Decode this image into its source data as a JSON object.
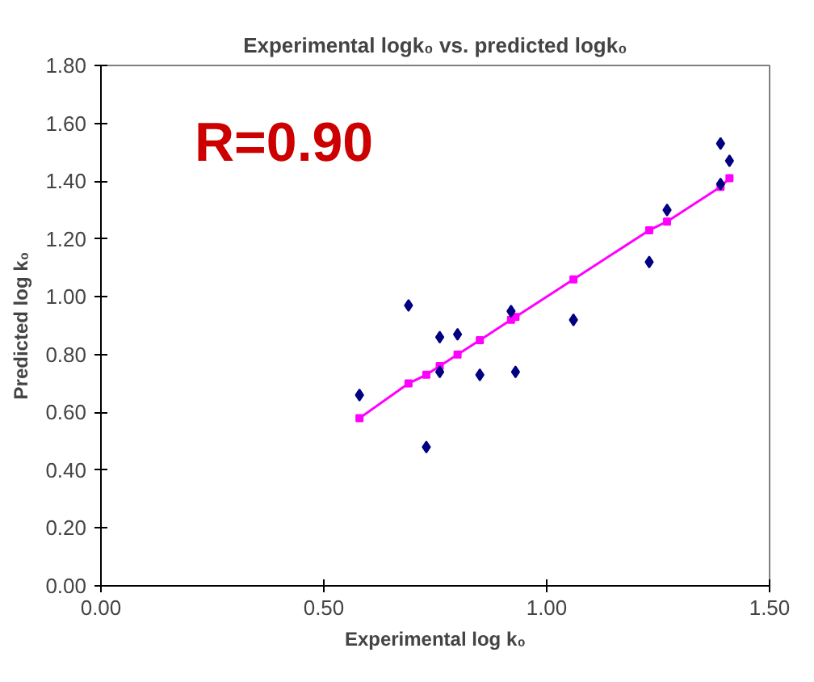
{
  "chart_data": {
    "type": "scatter",
    "title": "Experimental logk₀ vs. predicted logk₀",
    "xlabel": "Experimental log k₀",
    "ylabel": "Predicted log k₀",
    "xlim": [
      0,
      1.5
    ],
    "ylim": [
      0,
      1.8
    ],
    "xticks": [
      {
        "value": 0,
        "label": "0.00"
      },
      {
        "value": 0.5,
        "label": "0.50"
      },
      {
        "value": 1,
        "label": "1.00"
      },
      {
        "value": 1.5,
        "label": "1.50"
      }
    ],
    "yticks": [
      {
        "value": 0,
        "label": "0.00"
      },
      {
        "value": 0.2,
        "label": "0.20"
      },
      {
        "value": 0.4,
        "label": "0.40"
      },
      {
        "value": 0.6,
        "label": "0.60"
      },
      {
        "value": 0.8,
        "label": "0.80"
      },
      {
        "value": 1,
        "label": "1.00"
      },
      {
        "value": 1.2,
        "label": "1.20"
      },
      {
        "value": 1.4,
        "label": "1.40"
      },
      {
        "value": 1.6,
        "label": "1.60"
      },
      {
        "value": 1.8,
        "label": "1.80"
      }
    ],
    "series": [
      {
        "marker": "diamond",
        "color": "#000080",
        "x": [
          0.58,
          0.69,
          0.73,
          0.76,
          0.76,
          0.8,
          0.85,
          0.92,
          0.93,
          1.06,
          1.23,
          1.27,
          1.39,
          1.39,
          1.41
        ],
        "values": [
          0.66,
          0.97,
          0.48,
          0.86,
          0.74,
          0.87,
          0.73,
          0.95,
          0.74,
          0.92,
          1.12,
          1.3,
          1.53,
          1.39,
          1.47
        ]
      },
      {
        "type": "line",
        "marker": "square",
        "line_style": "solid",
        "color": "#ff00ff",
        "x": [
          0.58,
          0.69,
          0.73,
          0.76,
          0.8,
          0.85,
          0.92,
          0.93,
          1.06,
          1.23,
          1.27,
          1.39,
          1.41
        ],
        "values": [
          0.58,
          0.7,
          0.73,
          0.76,
          0.8,
          0.85,
          0.92,
          0.93,
          1.06,
          1.23,
          1.26,
          1.38,
          1.41
        ]
      }
    ],
    "annotations": [
      "R=0.90"
    ],
    "grid": false
  }
}
